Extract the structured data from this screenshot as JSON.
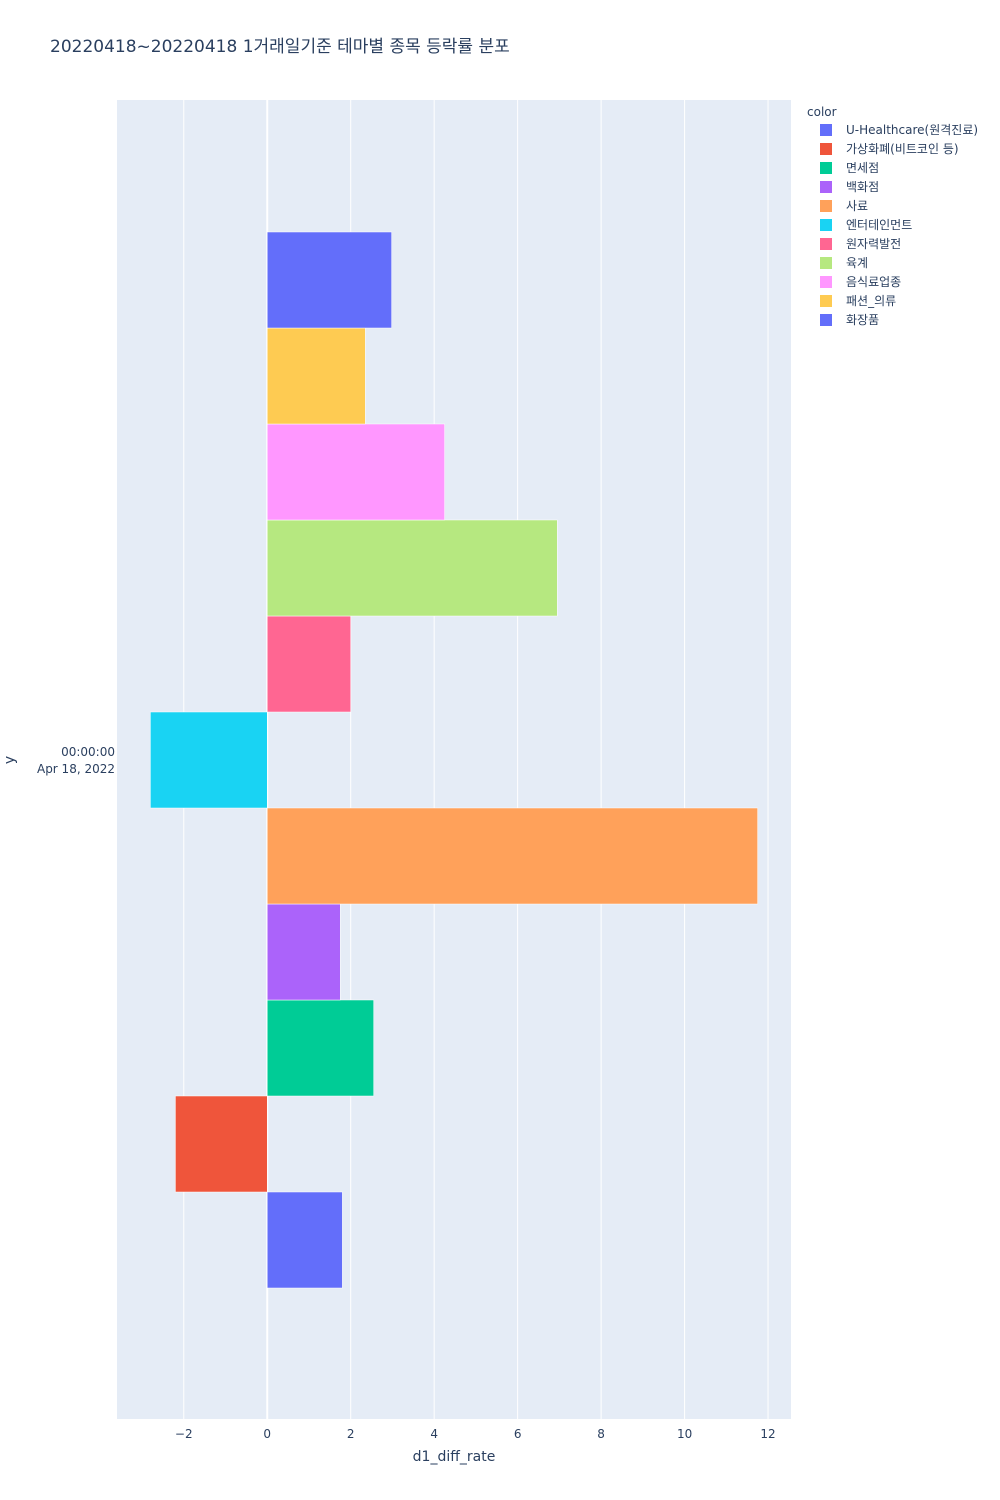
{
  "chart_data": {
    "type": "bar",
    "orientation": "horizontal",
    "title": "20220418~20220418 1거래일기준 테마별 종목 등락률 분포",
    "xlabel": "d1_diff_rate",
    "ylabel": "y",
    "xlim": [
      -3.6,
      12.55
    ],
    "x_ticks": [
      -2,
      0,
      2,
      4,
      6,
      8,
      10,
      12
    ],
    "x_tick_labels": [
      "−2",
      "0",
      "2",
      "4",
      "6",
      "8",
      "10",
      "12"
    ],
    "y_category": [
      "00:00:00",
      "Apr 18, 2022"
    ],
    "grid": true,
    "legend": {
      "title": "color",
      "placement": "right"
    },
    "series": [
      {
        "name": "U-Healthcare(원격진료)",
        "value": 1.8,
        "color": "#636efa"
      },
      {
        "name": "가상화폐(비트코인 등)",
        "value": -2.2,
        "color": "#EF553B"
      },
      {
        "name": "면세점",
        "value": 2.55,
        "color": "#00cc96"
      },
      {
        "name": "백화점",
        "value": 1.75,
        "color": "#ab63fa"
      },
      {
        "name": "사료",
        "value": 11.75,
        "color": "#FFA15A"
      },
      {
        "name": "엔터테인먼트",
        "value": -2.8,
        "color": "#19d3f3"
      },
      {
        "name": "원자력발전",
        "value": 2.0,
        "color": "#FF6692"
      },
      {
        "name": "육계",
        "value": 6.95,
        "color": "#B6E880"
      },
      {
        "name": "음식료업종",
        "value": 4.25,
        "color": "#FF97FF"
      },
      {
        "name": "패션_의류",
        "value": 2.35,
        "color": "#FECB52"
      },
      {
        "name": "화장품",
        "value": 2.98,
        "color": "#636efa"
      }
    ]
  }
}
